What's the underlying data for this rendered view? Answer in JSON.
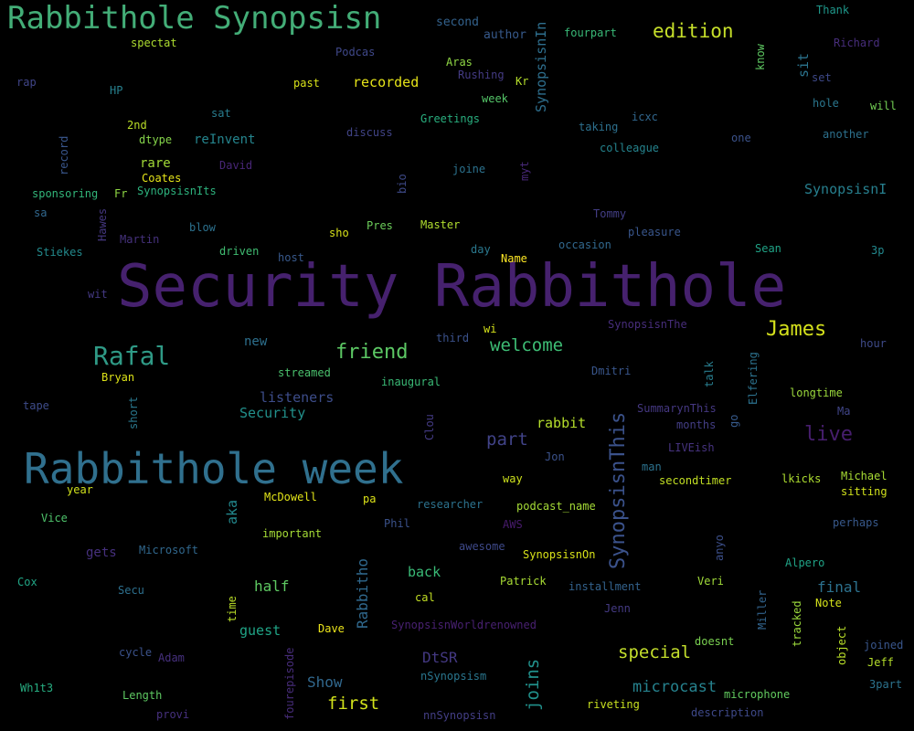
{
  "words": [
    {
      "text": "Security Rabbithole",
      "color": "#46216e"
    },
    {
      "text": "Rabbithole week",
      "color": "#30708e"
    },
    {
      "text": "Rabbithole Synopsisn",
      "color": "#43ad77"
    },
    {
      "text": "Rafal",
      "color": "#2f9a86"
    },
    {
      "text": "James",
      "color": "#d4e01c"
    },
    {
      "text": "friend",
      "color": "#5cc864"
    },
    {
      "text": "welcome",
      "color": "#3dbc74"
    },
    {
      "text": "live",
      "color": "#471e6e"
    },
    {
      "text": "SynopsisnThis",
      "color": "#3b528b"
    },
    {
      "text": "edition",
      "color": "#c6df2a"
    },
    {
      "text": "part",
      "color": "#414388"
    },
    {
      "text": "special",
      "color": "#c4df2c"
    },
    {
      "text": "first",
      "color": "#d2e21b"
    },
    {
      "text": "joins",
      "color": "#21918c"
    },
    {
      "text": "microcast",
      "color": "#26828e"
    },
    {
      "text": "Show",
      "color": "#31688e"
    },
    {
      "text": "final",
      "color": "#2c718e"
    },
    {
      "text": "half",
      "color": "#5ec962"
    },
    {
      "text": "back",
      "color": "#3aba76"
    },
    {
      "text": "guest",
      "color": "#20a486"
    },
    {
      "text": "DtSR",
      "color": "#443983"
    },
    {
      "text": "Rabbitho",
      "color": "#30698e"
    },
    {
      "text": "rabbit",
      "color": "#b5de2b"
    },
    {
      "text": "listeners",
      "color": "#3d4d8a"
    },
    {
      "text": "Security",
      "color": "#22918c"
    },
    {
      "text": "SynopsisnI",
      "color": "#277f8e"
    },
    {
      "text": "recorded",
      "color": "#e6e419"
    },
    {
      "text": "rare",
      "color": "#a2da37"
    },
    {
      "text": "reInvent",
      "color": "#25858e"
    },
    {
      "text": "new",
      "color": "#2d708e"
    },
    {
      "text": "gets",
      "color": "#46307e"
    },
    {
      "text": "aka",
      "color": "#23898e"
    },
    {
      "text": "sit",
      "color": "#2b748e"
    },
    {
      "text": "SynopsisnIn",
      "color": "#2e6f8e"
    },
    {
      "text": "second",
      "color": "#33628d"
    },
    {
      "text": "author",
      "color": "#375a8c"
    },
    {
      "text": "fourpart",
      "color": "#39b977"
    },
    {
      "text": "Thank",
      "color": "#1f988b"
    },
    {
      "text": "Richard",
      "color": "#472d7b"
    },
    {
      "text": "know",
      "color": "#5ec962"
    },
    {
      "text": "set",
      "color": "#3e4989"
    },
    {
      "text": "hole",
      "color": "#2a768e"
    },
    {
      "text": "will",
      "color": "#74d055"
    },
    {
      "text": "spectat",
      "color": "#addc30"
    },
    {
      "text": "Podcas",
      "color": "#3f4889"
    },
    {
      "text": "Aras",
      "color": "#8fd744"
    },
    {
      "text": "Rushing",
      "color": "#443b84"
    },
    {
      "text": "Kr",
      "color": "#b5de2b"
    },
    {
      "text": "week",
      "color": "#54c568"
    },
    {
      "text": "past",
      "color": "#d8e219"
    },
    {
      "text": "rap",
      "color": "#404588"
    },
    {
      "text": "HP",
      "color": "#27808e"
    },
    {
      "text": "Greetings",
      "color": "#29af7f"
    },
    {
      "text": "taking",
      "color": "#2d708e"
    },
    {
      "text": "icxc",
      "color": "#31678e"
    },
    {
      "text": "colleague",
      "color": "#25848e"
    },
    {
      "text": "one",
      "color": "#3b528b"
    },
    {
      "text": "another",
      "color": "#2d718e"
    },
    {
      "text": "sat",
      "color": "#287c8e"
    },
    {
      "text": "2nd",
      "color": "#bade28"
    },
    {
      "text": "dtype",
      "color": "#85d54a"
    },
    {
      "text": "discuss",
      "color": "#414487"
    },
    {
      "text": "record",
      "color": "#39568c"
    },
    {
      "text": "David",
      "color": "#482677"
    },
    {
      "text": "Coates",
      "color": "#e5e419"
    },
    {
      "text": "joine",
      "color": "#2c728e"
    },
    {
      "text": "myt",
      "color": "#482878"
    },
    {
      "text": "bio",
      "color": "#3e4a89"
    },
    {
      "text": "sponsoring",
      "color": "#32b67a"
    },
    {
      "text": "Fr",
      "color": "#8fd744"
    },
    {
      "text": "SynopsisnIts",
      "color": "#2db27d"
    },
    {
      "text": "sa",
      "color": "#31688e"
    },
    {
      "text": "Hawes",
      "color": "#453781"
    },
    {
      "text": "blow",
      "color": "#2c718e"
    },
    {
      "text": "sho",
      "color": "#d8e219"
    },
    {
      "text": "Pres",
      "color": "#6ccd5a"
    },
    {
      "text": "Master",
      "color": "#b0dd2f"
    },
    {
      "text": "Tommy",
      "color": "#433e85"
    },
    {
      "text": "pleasure",
      "color": "#39568c"
    },
    {
      "text": "Martin",
      "color": "#46327e"
    },
    {
      "text": "driven",
      "color": "#40bd72"
    },
    {
      "text": "host",
      "color": "#38598c"
    },
    {
      "text": "day",
      "color": "#2a788e"
    },
    {
      "text": "occasion",
      "color": "#31688e"
    },
    {
      "text": "Name",
      "color": "#fde725"
    },
    {
      "text": "Sean",
      "color": "#20a386"
    },
    {
      "text": "3p",
      "color": "#23898e"
    },
    {
      "text": "Stiekes",
      "color": "#238a8d"
    },
    {
      "text": "wit",
      "color": "#443983"
    },
    {
      "text": "SynopsisnThe",
      "color": "#472d7b"
    },
    {
      "text": "hour",
      "color": "#3e4a89"
    },
    {
      "text": "third",
      "color": "#3b528b"
    },
    {
      "text": "wi",
      "color": "#d5e21a"
    },
    {
      "text": "Elfering",
      "color": "#2c728e"
    },
    {
      "text": "Bryan",
      "color": "#dde318"
    },
    {
      "text": "streamed",
      "color": "#4ac16d"
    },
    {
      "text": "inaugural",
      "color": "#3aba76"
    },
    {
      "text": "Dmitri",
      "color": "#39568c"
    },
    {
      "text": "talk",
      "color": "#287d8e"
    },
    {
      "text": "longtime",
      "color": "#9bd93c"
    },
    {
      "text": "Ma",
      "color": "#404588"
    },
    {
      "text": "tape",
      "color": "#3e4c8a"
    },
    {
      "text": "short",
      "color": "#2a788e"
    },
    {
      "text": "Clou",
      "color": "#443b84"
    },
    {
      "text": "SummarynThis",
      "color": "#453882"
    },
    {
      "text": "months",
      "color": "#433e85"
    },
    {
      "text": "go",
      "color": "#375b8d"
    },
    {
      "text": "LIVEish",
      "color": "#46337f"
    },
    {
      "text": "Jon",
      "color": "#3b528b"
    },
    {
      "text": "man",
      "color": "#2c728e"
    },
    {
      "text": "secondtimer",
      "color": "#c2df23"
    },
    {
      "text": "lkicks",
      "color": "#addc30"
    },
    {
      "text": "Michael",
      "color": "#a8db34"
    },
    {
      "text": "sitting",
      "color": "#d0e11c"
    },
    {
      "text": "year",
      "color": "#d0e11c"
    },
    {
      "text": "McDowell",
      "color": "#e2e418"
    },
    {
      "text": "pa",
      "color": "#dde318"
    },
    {
      "text": "researcher",
      "color": "#2c728e"
    },
    {
      "text": "podcast_name",
      "color": "#a5db36"
    },
    {
      "text": "way",
      "color": "#cde11d"
    },
    {
      "text": "Vice",
      "color": "#4ec36b"
    },
    {
      "text": "Phil",
      "color": "#3b528b"
    },
    {
      "text": "AWS",
      "color": "#481b6d"
    },
    {
      "text": "important",
      "color": "#a5db36"
    },
    {
      "text": "anyo",
      "color": "#3c4f8a"
    },
    {
      "text": "perhaps",
      "color": "#38598c"
    },
    {
      "text": "Microsoft",
      "color": "#31688e"
    },
    {
      "text": "awesome",
      "color": "#3e4989"
    },
    {
      "text": "SynopsisnOn",
      "color": "#d8e219"
    },
    {
      "text": "Alpero",
      "color": "#20a386"
    },
    {
      "text": "Cox",
      "color": "#21a585"
    },
    {
      "text": "Secu",
      "color": "#2d708e"
    },
    {
      "text": "installment",
      "color": "#33628d"
    },
    {
      "text": "Patrick",
      "color": "#a8db34"
    },
    {
      "text": "Veri",
      "color": "#a0da39"
    },
    {
      "text": "cal",
      "color": "#c2df23"
    },
    {
      "text": "time",
      "color": "#bade28"
    },
    {
      "text": "Jenn",
      "color": "#443a83"
    },
    {
      "text": "Miller",
      "color": "#32648e"
    },
    {
      "text": "Note",
      "color": "#d5e21a"
    },
    {
      "text": "SynopsisnWorldrenowned",
      "color": "#482071"
    },
    {
      "text": "Dave",
      "color": "#ece51b"
    },
    {
      "text": "doesnt",
      "color": "#7ad151"
    },
    {
      "text": "tracked",
      "color": "#9bd93c"
    },
    {
      "text": "object",
      "color": "#b8de29"
    },
    {
      "text": "joined",
      "color": "#39568c"
    },
    {
      "text": "cycle",
      "color": "#3b528b"
    },
    {
      "text": "Adam",
      "color": "#46307e"
    },
    {
      "text": "fourepisode",
      "color": "#472c7a"
    },
    {
      "text": "Jeff",
      "color": "#b5de2b"
    },
    {
      "text": "Wh1t3",
      "color": "#27ad81"
    },
    {
      "text": "Length",
      "color": "#5ec962"
    },
    {
      "text": "nSynopsism",
      "color": "#2a768e"
    },
    {
      "text": "3part",
      "color": "#2c738e"
    },
    {
      "text": "microphone",
      "color": "#62cb5f"
    },
    {
      "text": "riveting",
      "color": "#c8e020"
    },
    {
      "text": "provi",
      "color": "#46307e"
    },
    {
      "text": "nnSynopsisn",
      "color": "#433e85"
    },
    {
      "text": "description",
      "color": "#3e4989"
    }
  ]
}
